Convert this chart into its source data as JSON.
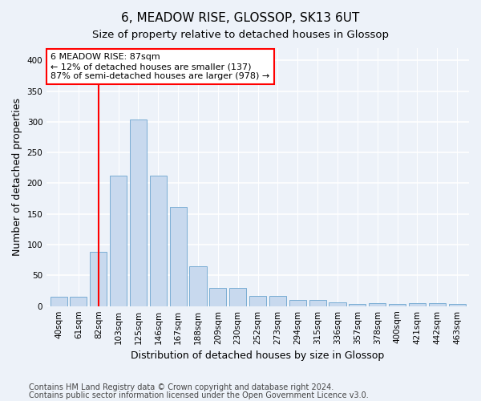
{
  "title": "6, MEADOW RISE, GLOSSOP, SK13 6UT",
  "subtitle": "Size of property relative to detached houses in Glossop",
  "xlabel": "Distribution of detached houses by size in Glossop",
  "ylabel": "Number of detached properties",
  "categories": [
    "40sqm",
    "61sqm",
    "82sqm",
    "103sqm",
    "125sqm",
    "146sqm",
    "167sqm",
    "188sqm",
    "209sqm",
    "230sqm",
    "252sqm",
    "273sqm",
    "294sqm",
    "315sqm",
    "336sqm",
    "357sqm",
    "378sqm",
    "400sqm",
    "421sqm",
    "442sqm",
    "463sqm"
  ],
  "values": [
    15,
    15,
    89,
    212,
    304,
    213,
    161,
    65,
    30,
    30,
    17,
    17,
    10,
    10,
    6,
    3,
    5,
    3,
    5,
    5,
    3
  ],
  "bar_color": "#c8d9ee",
  "bar_edge_color": "#7aadd4",
  "vline_x_index": 2.0,
  "annotation_line1": "6 MEADOW RISE: 87sqm",
  "annotation_line2": "← 12% of detached houses are smaller (137)",
  "annotation_line3": "87% of semi-detached houses are larger (978) →",
  "ylim": [
    0,
    420
  ],
  "yticks": [
    0,
    50,
    100,
    150,
    200,
    250,
    300,
    350,
    400
  ],
  "footer1": "Contains HM Land Registry data © Crown copyright and database right 2024.",
  "footer2": "Contains public sector information licensed under the Open Government Licence v3.0.",
  "background_color": "#edf2f9",
  "plot_bg_color": "#edf2f9",
  "grid_color": "#ffffff",
  "title_fontsize": 11,
  "subtitle_fontsize": 9.5,
  "xlabel_fontsize": 9,
  "ylabel_fontsize": 9,
  "tick_fontsize": 7.5,
  "annotation_fontsize": 8,
  "footer_fontsize": 7
}
